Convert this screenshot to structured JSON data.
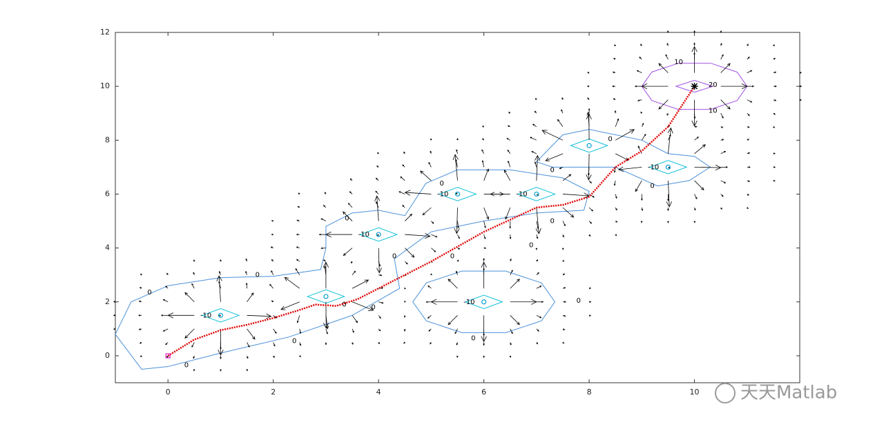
{
  "chart_data": {
    "type": "line",
    "xlim": [
      -1,
      12
    ],
    "ylim": [
      -1,
      12
    ],
    "xticks": [
      0,
      2,
      4,
      6,
      8,
      10
    ],
    "yticks": [
      0,
      2,
      4,
      6,
      8,
      10,
      12
    ],
    "path": {
      "color": "#e00000",
      "x": [
        0,
        0.5,
        1,
        1.5,
        2,
        2.5,
        2.8,
        3.2,
        3.6,
        4,
        4.5,
        5,
        5.5,
        6,
        6.5,
        7,
        7.5,
        8,
        8.5,
        9,
        9.5,
        10
      ],
      "y": [
        0,
        0.6,
        0.95,
        1.15,
        1.4,
        1.7,
        1.9,
        1.85,
        2.1,
        2.5,
        3,
        3.5,
        4.05,
        4.6,
        5.05,
        5.5,
        5.6,
        5.9,
        7,
        7.6,
        8.5,
        10
      ]
    },
    "obstacles": {
      "color": "#00a0d0",
      "x": [
        1,
        3,
        4,
        6,
        5.5,
        7,
        8,
        9.5
      ],
      "y": [
        1.5,
        2.2,
        4.5,
        2,
        6,
        6,
        7.8,
        7
      ]
    },
    "start": {
      "color": "#e020c0",
      "x": 0,
      "y": 0
    },
    "goal": {
      "color": "#000000",
      "x": 10,
      "y": 10
    },
    "contour_levels": [
      -10,
      0,
      10,
      20
    ],
    "watermark": "天天Matlab"
  }
}
